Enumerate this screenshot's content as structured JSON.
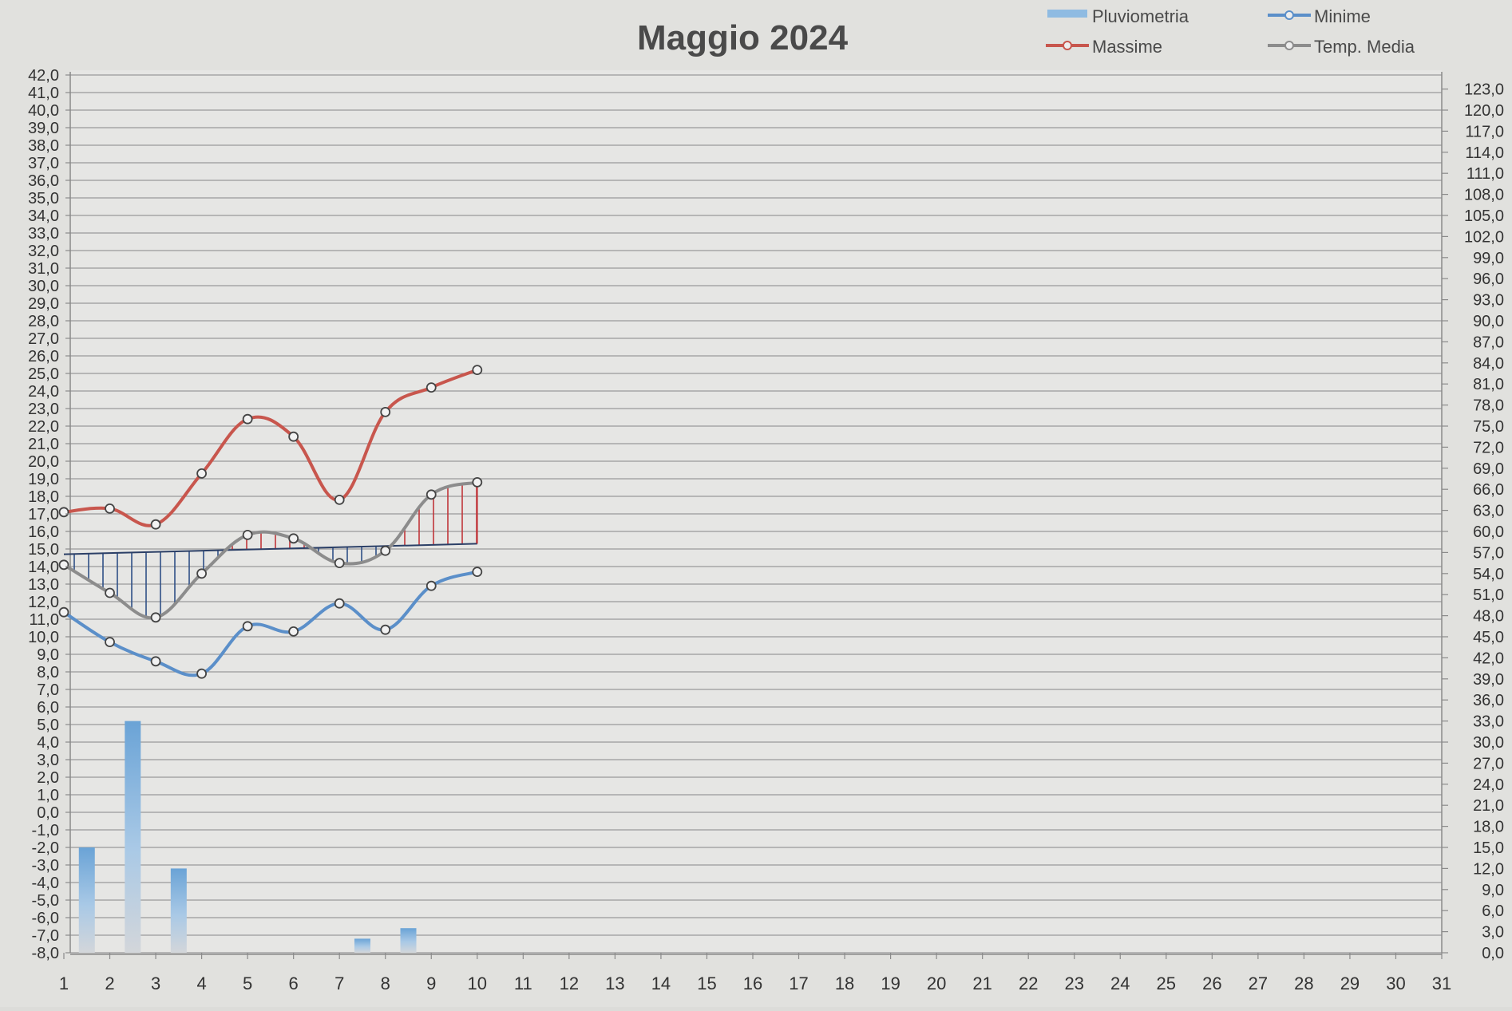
{
  "chart_data": {
    "type": "line",
    "title": "Maggio 2024",
    "legend": {
      "placement": "top-right",
      "items": [
        {
          "name": "Pluviometria",
          "color": "#7fb3dc",
          "kind": "bar"
        },
        {
          "name": "Minime",
          "color": "#5b8fc9",
          "kind": "line"
        },
        {
          "name": "Massime",
          "color": "#c8564d",
          "kind": "line"
        },
        {
          "name": "Temp. Media",
          "color": "#8c8c8c",
          "kind": "line"
        }
      ]
    },
    "x": {
      "categories": [
        "1",
        "2",
        "3",
        "4",
        "5",
        "6",
        "7",
        "8",
        "9",
        "10",
        "11",
        "12",
        "13",
        "14",
        "15",
        "16",
        "17",
        "18",
        "19",
        "20",
        "21",
        "22",
        "23",
        "24",
        "25",
        "26",
        "27",
        "28",
        "29",
        "30",
        "31"
      ]
    },
    "y_left": {
      "range": [
        -8,
        42
      ],
      "ticks": [
        "42,0",
        "41,0",
        "40,0",
        "39,0",
        "38,0",
        "37,0",
        "36,0",
        "35,0",
        "34,0",
        "33,0",
        "32,0",
        "31,0",
        "30,0",
        "29,0",
        "28,0",
        "27,0",
        "26,0",
        "25,0",
        "24,0",
        "23,0",
        "22,0",
        "21,0",
        "20,0",
        "19,0",
        "18,0",
        "17,0",
        "16,0",
        "15,0",
        "14,0",
        "13,0",
        "12,0",
        "11,0",
        "10,0",
        "9,0",
        "8,0",
        "7,0",
        "6,0",
        "5,0",
        "4,0",
        "3,0",
        "2,0",
        "1,0",
        "0,0",
        "-1,0",
        "-2,0",
        "-3,0",
        "-4,0",
        "-5,0",
        "-6,0",
        "-7,0",
        "-8,0"
      ]
    },
    "y_right": {
      "range": [
        0,
        125
      ],
      "ticks": [
        "123,0",
        "120,0",
        "117,0",
        "114,0",
        "111,0",
        "108,0",
        "105,0",
        "102,0",
        "99,0",
        "96,0",
        "93,0",
        "90,0",
        "87,0",
        "84,0",
        "81,0",
        "78,0",
        "75,0",
        "72,0",
        "69,0",
        "66,0",
        "63,0",
        "60,0",
        "57,0",
        "54,0",
        "51,0",
        "48,0",
        "45,0",
        "42,0",
        "39,0",
        "36,0",
        "33,0",
        "30,0",
        "27,0",
        "24,0",
        "21,0",
        "18,0",
        "15,0",
        "12,0",
        "9,0",
        "6,0",
        "3,0",
        "0,0"
      ]
    },
    "grid": true,
    "series": [
      {
        "name": "Massime",
        "axis": "left",
        "color": "#c8564d",
        "values": [
          17.1,
          17.3,
          16.4,
          19.3,
          22.4,
          21.4,
          17.8,
          22.8,
          24.2,
          25.2
        ]
      },
      {
        "name": "Minime",
        "axis": "left",
        "color": "#5b8fc9",
        "values": [
          11.4,
          9.7,
          8.6,
          7.9,
          10.6,
          10.3,
          11.9,
          10.4,
          12.9,
          13.7
        ]
      },
      {
        "name": "Temp. Media",
        "axis": "left",
        "color": "#8c8c8c",
        "values": [
          14.1,
          12.5,
          11.1,
          13.6,
          15.8,
          15.6,
          14.2,
          14.9,
          18.1,
          18.8
        ]
      }
    ],
    "reference_line": {
      "axis": "left",
      "value": 15.3,
      "start_value": 14.7,
      "color": "#3a5f95"
    },
    "precipitation": {
      "name": "Pluviometria",
      "axis": "right",
      "color": "#6aa3d6",
      "values": [
        15.0,
        33.0,
        12.0,
        0,
        0,
        0,
        2.0,
        3.5,
        0,
        0
      ]
    }
  }
}
